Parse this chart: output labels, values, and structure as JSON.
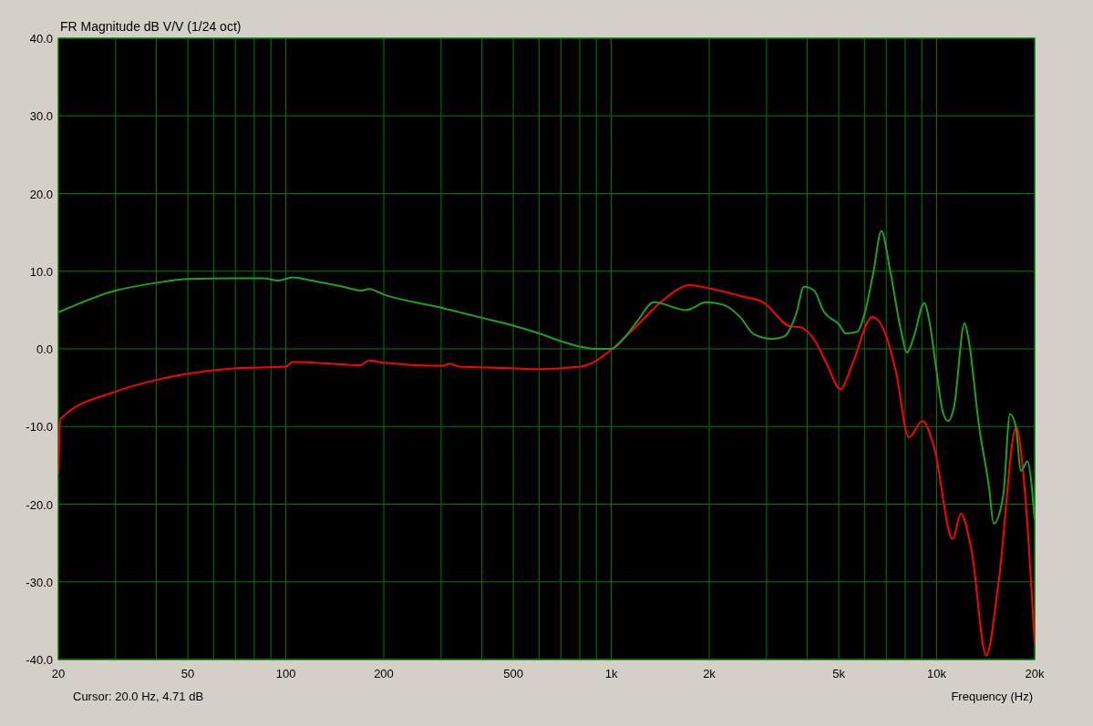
{
  "chart_data": {
    "type": "line",
    "title": "FR Magnitude dB V/V (1/24 oct)",
    "xlabel": "Frequency (Hz)",
    "annotations": [
      "Cursor: 20.0 Hz, 4.71 dB"
    ],
    "log": "x",
    "grid": true,
    "line_style": "solid",
    "marker": "none",
    "xlim": [
      20,
      20000
    ],
    "ylim": [
      -40,
      40
    ],
    "xticks": [
      20,
      {
        "value": 30,
        "label": null
      },
      {
        "value": 40,
        "label": null
      },
      50,
      {
        "value": 60,
        "label": null
      },
      {
        "value": 70,
        "label": null
      },
      {
        "value": 80,
        "label": null
      },
      {
        "value": 90,
        "label": null
      },
      100,
      200,
      {
        "value": 300,
        "label": null
      },
      {
        "value": 400,
        "label": null
      },
      500,
      {
        "value": 600,
        "label": null
      },
      {
        "value": 700,
        "label": null
      },
      {
        "value": 800,
        "label": null
      },
      {
        "value": 900,
        "label": null
      },
      {
        "value": 1000,
        "label": "1k"
      },
      {
        "value": 2000,
        "label": "2k"
      },
      {
        "value": 3000,
        "label": null
      },
      {
        "value": 4000,
        "label": null
      },
      {
        "value": 5000,
        "label": "5k"
      },
      {
        "value": 6000,
        "label": null
      },
      {
        "value": 7000,
        "label": null
      },
      {
        "value": 8000,
        "label": null
      },
      {
        "value": 9000,
        "label": null
      },
      {
        "value": 10000,
        "label": "10k"
      },
      {
        "value": 20000,
        "label": "20k"
      }
    ],
    "yticks": [
      {
        "value": -40,
        "label": "-40.0"
      },
      {
        "value": -30,
        "label": "-30.0"
      },
      {
        "value": -20,
        "label": "-20.0"
      },
      {
        "value": -10,
        "label": "-10.0"
      },
      {
        "value": 0,
        "label": "0.0"
      },
      {
        "value": 10,
        "label": "10.0"
      },
      {
        "value": 20,
        "label": "20.0"
      },
      {
        "value": 30,
        "label": "30.0"
      },
      {
        "value": 40,
        "label": "40.0"
      }
    ],
    "series": [
      {
        "color": "#ff0000",
        "x": [
          20,
          20.3,
          30,
          40,
          50,
          70,
          100,
          105,
          150,
          170,
          180,
          200,
          300,
          320,
          340,
          500,
          600,
          800,
          900,
          1000,
          1200,
          1400,
          1750,
          2000,
          2500,
          2930,
          3550,
          3800,
          4200,
          4600,
          5060,
          5500,
          6340,
          6900,
          7500,
          8210,
          9040,
          9800,
          11200,
          11860,
          12800,
          14200,
          15500,
          17580,
          18000,
          18800,
          19500,
          20000
        ],
        "values": [
          -16,
          -9,
          -5.5,
          -4,
          -3.2,
          -2.5,
          -2.3,
          -1.7,
          -2,
          -2.1,
          -1.5,
          -1.8,
          -2.2,
          -1.9,
          -2.3,
          -2.5,
          -2.6,
          -2.3,
          -1.5,
          -0.1,
          3,
          5.8,
          8.2,
          7.8,
          6.8,
          6,
          2.9,
          2.8,
          1.2,
          -2,
          -5.2,
          -2,
          4.1,
          2.3,
          -3,
          -11.4,
          -9.3,
          -12.5,
          -24.5,
          -21.2,
          -26,
          -39.5,
          -30,
          -10,
          -12,
          -20,
          -30,
          -38
        ]
      },
      {
        "color": "#20a020",
        "x": [
          20,
          30,
          40,
          50,
          70,
          85,
          95,
          105,
          120,
          150,
          170,
          180,
          200,
          300,
          400,
          500,
          600,
          700,
          800,
          900,
          1000,
          1100,
          1200,
          1350,
          1700,
          1960,
          2200,
          2500,
          2740,
          3140,
          3400,
          3700,
          3910,
          4200,
          4500,
          5000,
          5260,
          5700,
          6000,
          6400,
          6760,
          7200,
          7800,
          8100,
          8500,
          9160,
          9500,
          10000,
          10400,
          10840,
          11300,
          12180,
          12500,
          13500,
          14500,
          14960,
          16000,
          16800,
          17500,
          18150,
          19000,
          20000
        ],
        "values": [
          4.7,
          7.5,
          8.5,
          9,
          9.1,
          9.1,
          8.8,
          9.2,
          8.8,
          8,
          7.5,
          7.7,
          7,
          5.3,
          4,
          3,
          2,
          1,
          0.3,
          0,
          0,
          1.5,
          3.5,
          6,
          5,
          6,
          5.7,
          4,
          1.9,
          1.3,
          1.6,
          4.5,
          8,
          7.5,
          4.8,
          3.2,
          2,
          2.2,
          4.5,
          10,
          15.2,
          10,
          2,
          -0.5,
          1.5,
          5.9,
          3.5,
          -3,
          -7.8,
          -9.3,
          -7.5,
          3.3,
          1.5,
          -10,
          -18,
          -22.5,
          -19,
          -8.4,
          -10,
          -15.7,
          -14.5,
          -22
        ]
      }
    ]
  }
}
